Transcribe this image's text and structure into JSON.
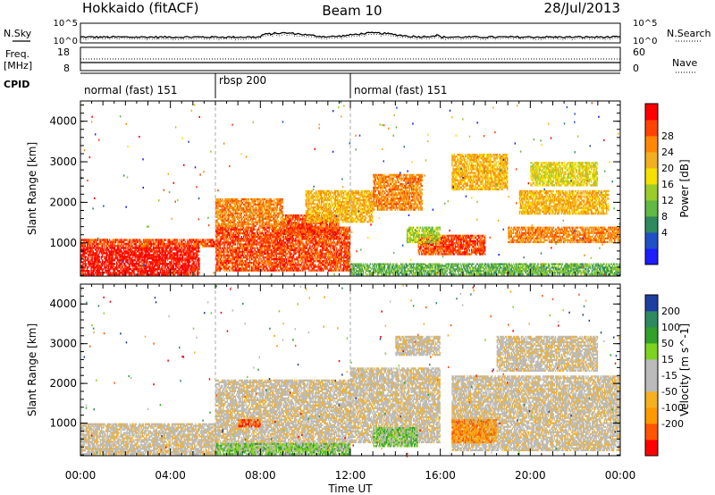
{
  "header": {
    "station": "Hokkaido (fitACF)",
    "beam": "Beam 10",
    "date": "28/Jul/2013"
  },
  "summary": {
    "nsky_label": "N.Sky",
    "nsearch_label": "N.Search",
    "n_ticks": [
      "10^5",
      "10^0"
    ],
    "freq_label": "Freq.",
    "freq_unit": "[MHz]",
    "freq_ticks": [
      "18",
      "8"
    ],
    "nave_label": "Nave",
    "nave_ticks": [
      "60",
      "0"
    ],
    "cpid_label": "CPID",
    "cpid_segments": [
      {
        "label": "normal (fast) 151",
        "start_hour": 0,
        "end_hour": 6
      },
      {
        "label": "rbsp 200",
        "start_hour": 6,
        "end_hour": 12
      },
      {
        "label": "normal (fast) 151",
        "start_hour": 12,
        "end_hour": 24
      }
    ]
  },
  "chart_data": [
    {
      "type": "heatmap",
      "name": "power-panel",
      "ylabel": "Slant Range [km]",
      "xlabel": "",
      "xlim": [
        0,
        24
      ],
      "ylim": [
        180,
        4500
      ],
      "yticks": [
        1000,
        2000,
        3000,
        4000
      ],
      "colorbar": {
        "label": "Power [dB]",
        "ticks": [
          "28",
          "24",
          "20",
          "16",
          "12",
          "8",
          "4"
        ],
        "colors": [
          "#1d1dff",
          "#2050c8",
          "#2e8a5e",
          "#62b845",
          "#9ccc2a",
          "#f5e000",
          "#f0b020",
          "#ff8800",
          "#ff4400",
          "#ff0000"
        ]
      },
      "regions": [
        {
          "t0": 0.0,
          "t1": 5.3,
          "r0": 200,
          "r1": 900,
          "level": 9
        },
        {
          "t0": 0.0,
          "t1": 6.0,
          "r0": 900,
          "r1": 1100,
          "level": 8
        },
        {
          "t0": 6.0,
          "t1": 12.0,
          "r0": 300,
          "r1": 1400,
          "level": 8
        },
        {
          "t0": 6.0,
          "t1": 9.0,
          "r0": 1400,
          "r1": 2100,
          "level": 7
        },
        {
          "t0": 9.0,
          "t1": 11.5,
          "r0": 1200,
          "r1": 1700,
          "level": 8
        },
        {
          "t0": 10.0,
          "t1": 13.0,
          "r0": 1500,
          "r1": 2300,
          "level": 6
        },
        {
          "t0": 13.0,
          "t1": 15.2,
          "r0": 1800,
          "r1": 2700,
          "level": 7
        },
        {
          "t0": 15.0,
          "t1": 18.0,
          "r0": 700,
          "r1": 1200,
          "level": 8
        },
        {
          "t0": 14.5,
          "t1": 16.0,
          "r0": 1000,
          "r1": 1400,
          "level": 4
        },
        {
          "t0": 16.5,
          "t1": 19.0,
          "r0": 2300,
          "r1": 3200,
          "level": 6
        },
        {
          "t0": 19.0,
          "t1": 24.0,
          "r0": 1000,
          "r1": 1400,
          "level": 7
        },
        {
          "t0": 19.5,
          "t1": 23.5,
          "r0": 1700,
          "r1": 2300,
          "level": 6
        },
        {
          "t0": 20.0,
          "t1": 23.0,
          "r0": 2400,
          "r1": 3000,
          "level": 5
        },
        {
          "t0": 12.0,
          "t1": 24.0,
          "r0": 200,
          "r1": 500,
          "level": 3
        }
      ]
    },
    {
      "type": "heatmap",
      "name": "velocity-panel",
      "ylabel": "Slant Range [km]",
      "xlabel": "Time UT",
      "xlim": [
        0,
        24
      ],
      "ylim": [
        180,
        4500
      ],
      "xticks": [
        "00:00",
        "04:00",
        "08:00",
        "12:00",
        "16:00",
        "20:00",
        "00:00"
      ],
      "yticks": [
        1000,
        2000,
        3000,
        4000
      ],
      "colorbar": {
        "label": "Velocity [m s^-1]",
        "ticks": [
          "200",
          "100",
          "50",
          "15",
          "-15",
          "-50",
          "-100",
          "-200"
        ],
        "colors": [
          "#ff0000",
          "#ff5500",
          "#ff9900",
          "#f5b020",
          "#bbbbbb",
          "#bbbbbb",
          "#7ed321",
          "#33a02c",
          "#2e8a5e",
          "#1e3fa0"
        ]
      },
      "regions": [
        {
          "t0": 0.0,
          "t1": 6.0,
          "r0": 200,
          "r1": 1000,
          "level": 4
        },
        {
          "t0": 6.0,
          "t1": 12.0,
          "r0": 300,
          "r1": 2100,
          "level": 4
        },
        {
          "t0": 12.0,
          "t1": 16.0,
          "r0": 500,
          "r1": 2400,
          "level": 4
        },
        {
          "t0": 16.5,
          "t1": 24.0,
          "r0": 300,
          "r1": 2200,
          "level": 4
        },
        {
          "t0": 16.5,
          "t1": 18.5,
          "r0": 500,
          "r1": 1100,
          "level": 2
        },
        {
          "t0": 7.0,
          "t1": 8.0,
          "r0": 900,
          "r1": 1100,
          "level": 1
        },
        {
          "t0": 6.0,
          "t1": 12.0,
          "r0": 200,
          "r1": 500,
          "level": 6
        },
        {
          "t0": 13.0,
          "t1": 15.0,
          "r0": 400,
          "r1": 900,
          "level": 6
        },
        {
          "t0": 18.5,
          "t1": 23.0,
          "r0": 2300,
          "r1": 3200,
          "level": 4
        },
        {
          "t0": 14.0,
          "t1": 16.0,
          "r0": 2700,
          "r1": 3200,
          "level": 4
        }
      ]
    }
  ]
}
